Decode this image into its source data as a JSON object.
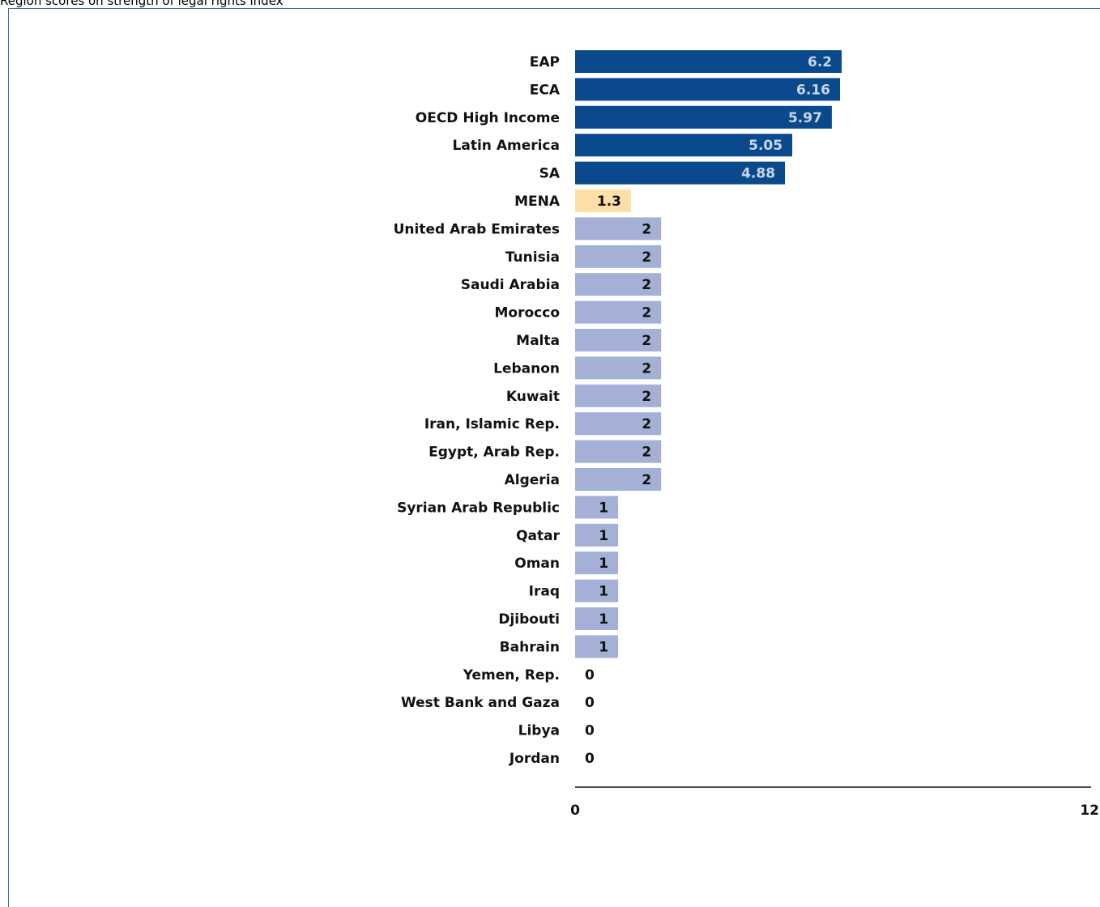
{
  "chart_data": {
    "type": "bar",
    "orientation": "horizontal",
    "title": "Region scores on strength of legal rights index",
    "categories": [
      "EAP",
      "ECA",
      "OECD High Income",
      "Latin America",
      "SA",
      "MENA",
      "United Arab Emirates",
      "Tunisia",
      "Saudi Arabia",
      "Morocco",
      "Malta",
      "Lebanon",
      "Kuwait",
      "Iran, Islamic Rep.",
      "Egypt, Arab Rep.",
      "Algeria",
      "Syrian Arab Republic",
      "Qatar",
      "Oman",
      "Iraq",
      "Djibouti",
      "Bahrain",
      "Yemen, Rep.",
      "West Bank and Gaza",
      "Libya",
      "Jordan"
    ],
    "values": [
      6.2,
      6.16,
      5.97,
      5.05,
      4.88,
      1.3,
      2,
      2,
      2,
      2,
      2,
      2,
      2,
      2,
      2,
      2,
      1,
      1,
      1,
      1,
      1,
      1,
      0,
      0,
      0,
      0
    ],
    "value_labels": [
      "6.2",
      "6.16",
      "5.97",
      "5.05",
      "4.88",
      "1.3",
      "2",
      "2",
      "2",
      "2",
      "2",
      "2",
      "2",
      "2",
      "2",
      "2",
      "1",
      "1",
      "1",
      "1",
      "1",
      "1",
      "0",
      "0",
      "0",
      "0"
    ],
    "groups": [
      "region",
      "region",
      "region",
      "region",
      "region",
      "mena",
      "country",
      "country",
      "country",
      "country",
      "country",
      "country",
      "country",
      "country",
      "country",
      "country",
      "country",
      "country",
      "country",
      "country",
      "country",
      "country",
      "country",
      "country",
      "country",
      "country"
    ],
    "colors": {
      "region": "#0a4a8c",
      "mena": "#fde0a8",
      "country": "#a4b0d6"
    },
    "label_colors": {
      "region": "#c9d6ea",
      "mena": "#111111",
      "country": "#111111"
    },
    "xlim": [
      0,
      12
    ],
    "x_ticks": [
      "0",
      "12"
    ],
    "grid": false,
    "legend": "none"
  }
}
